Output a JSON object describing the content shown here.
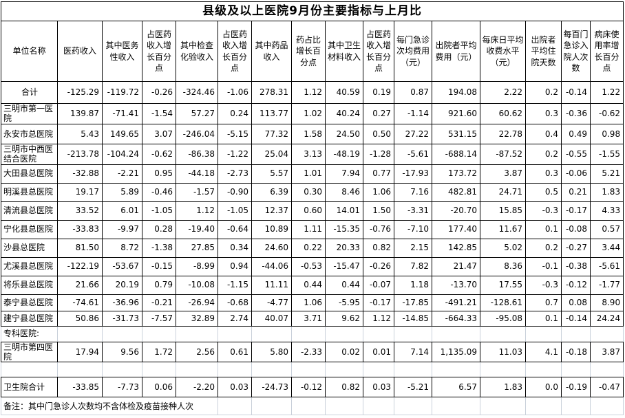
{
  "title": "县级及以上医院9月份主要指标与上月比",
  "note": "备注：其中门急诊人次数均不含体检及疫苗接种人次",
  "colors": {
    "text": "#000000",
    "background": "#ffffff",
    "table_border": "#000000",
    "gridline": "#c9d0da"
  },
  "columns": [
    "单位名称",
    "医药收入",
    "其中医务性收入",
    "占医药收入增长百分点",
    "其中检查化验收入",
    "占医药收入增长百分点",
    "其中药品收入",
    "药占比增长百分点",
    "其中卫生材料收入",
    "占医药收入增长百分点",
    "每门急诊次均费用（元）",
    "出院者平均费用（元）",
    "每床日平均收费水平（元）",
    "出院者平均住院天数",
    "每百门急诊入院人次数",
    "病床使用率增长百分点"
  ],
  "rows": [
    {
      "type": "total",
      "name": "合计",
      "values": [
        "-125.29",
        "-119.72",
        "-0.26",
        "-324.46",
        "-1.06",
        "278.31",
        "1.12",
        "40.59",
        "0.19",
        "0.87",
        "194.08",
        "2.22",
        "0.2",
        "-0.14",
        "1.22"
      ]
    },
    {
      "type": "hospital",
      "name": "三明市第一医院",
      "values": [
        "139.87",
        "-71.41",
        "-1.54",
        "57.27",
        "0.24",
        "113.77",
        "1.02",
        "40.24",
        "0.27",
        "-1.14",
        "921.60",
        "60.62",
        "0.3",
        "-0.36",
        "-0.62"
      ]
    },
    {
      "type": "hospital",
      "name": "永安市总医院",
      "values": [
        "5.43",
        "149.65",
        "3.07",
        "-246.04",
        "-5.15",
        "77.32",
        "1.58",
        "24.50",
        "0.50",
        "27.22",
        "531.15",
        "22.78",
        "0.4",
        "0.49",
        "0.98"
      ]
    },
    {
      "type": "hospital",
      "name": "三明市中西医结合医院",
      "values": [
        "-213.78",
        "-104.24",
        "-0.62",
        "-86.38",
        "-1.22",
        "25.04",
        "3.13",
        "-48.19",
        "-1.28",
        "-5.61",
        "-688.14",
        "-87.52",
        "0.2",
        "-0.55",
        "-1.55"
      ]
    },
    {
      "type": "hospital",
      "name": "大田县总医院",
      "values": [
        "-32.88",
        "-2.21",
        "0.95",
        "-44.18",
        "-2.73",
        "5.57",
        "1.01",
        "7.94",
        "0.77",
        "-17.93",
        "173.72",
        "3.87",
        "0.3",
        "-0.06",
        "5.21"
      ]
    },
    {
      "type": "hospital",
      "name": "明溪县总医院",
      "values": [
        "19.17",
        "5.89",
        "-0.46",
        "-1.57",
        "-0.90",
        "6.39",
        "0.30",
        "8.46",
        "1.06",
        "7.16",
        "482.81",
        "24.71",
        "0.5",
        "0.21",
        "1.83"
      ]
    },
    {
      "type": "hospital",
      "name": "清流县总医院",
      "values": [
        "33.52",
        "6.01",
        "-1.05",
        "1.12",
        "-1.05",
        "12.37",
        "0.60",
        "14.01",
        "1.50",
        "-3.31",
        "-20.70",
        "15.85",
        "-0.3",
        "-0.17",
        "4.33"
      ]
    },
    {
      "type": "hospital",
      "name": "宁化县总医院",
      "values": [
        "-33.83",
        "-9.97",
        "0.28",
        "-19.40",
        "-0.64",
        "10.89",
        "1.11",
        "-15.35",
        "-0.76",
        "-7.10",
        "177.40",
        "11.67",
        "0.1",
        "-0.08",
        "0.57"
      ]
    },
    {
      "type": "hospital",
      "name": "沙县总医院",
      "values": [
        "81.50",
        "8.72",
        "-1.38",
        "27.85",
        "0.34",
        "24.60",
        "0.22",
        "20.33",
        "0.82",
        "2.15",
        "142.85",
        "5.02",
        "0.2",
        "-0.27",
        "3.44"
      ]
    },
    {
      "type": "hospital",
      "name": "尤溪县总医院",
      "values": [
        "-122.19",
        "-53.67",
        "-0.15",
        "-8.99",
        "0.94",
        "-44.06",
        "-0.53",
        "-15.47",
        "-0.26",
        "7.82",
        "21.47",
        "8.36",
        "-0.1",
        "-0.38",
        "-5.61"
      ]
    },
    {
      "type": "hospital",
      "name": "将乐县总医院",
      "values": [
        "21.66",
        "20.19",
        "0.79",
        "-10.08",
        "-1.15",
        "11.11",
        "0.44",
        "0.44",
        "-0.07",
        "1.18",
        "-13.70",
        "17.55",
        "-0.3",
        "-0.12",
        "-1.77"
      ]
    },
    {
      "type": "hospital",
      "name": "泰宁县总医院",
      "values": [
        "-74.61",
        "-36.96",
        "-0.21",
        "-26.94",
        "-0.68",
        "-4.77",
        "1.06",
        "-5.95",
        "-0.17",
        "-17.85",
        "-491.21",
        "-128.61",
        "0.7",
        "0.08",
        "8.90"
      ]
    },
    {
      "type": "hospital",
      "name": "建宁县总医院",
      "values": [
        "50.86",
        "-31.73",
        "-7.57",
        "32.89",
        "2.74",
        "40.07",
        "3.71",
        "9.62",
        "1.12",
        "-14.85",
        "-664.33",
        "-95.08",
        "0.1",
        "-0.14",
        "24.24"
      ]
    },
    {
      "type": "section",
      "name": "专科医院:",
      "values": [
        "",
        "",
        "",
        "",
        "",
        "",
        "",
        "",
        "",
        "",
        "",
        "",
        "",
        "",
        ""
      ]
    },
    {
      "type": "hospital",
      "name": "三明市第四医院",
      "values": [
        "17.94",
        "9.56",
        "1.72",
        "2.56",
        "0.61",
        "5.80",
        "-2.33",
        "0.02",
        "0.01",
        "7.14",
        "1,135.09",
        "11.03",
        "4.1",
        "-0.18",
        "3.87"
      ]
    },
    {
      "type": "blank",
      "name": "",
      "values": [
        "",
        "",
        "",
        "",
        "",
        "",
        "",
        "",
        "",
        "",
        "",
        "",
        "",
        "",
        ""
      ]
    },
    {
      "type": "subtotal",
      "name": "卫生院合计",
      "values": [
        "-33.85",
        "-7.73",
        "0.06",
        "-2.20",
        "0.03",
        "-24.73",
        "-0.12",
        "0.82",
        "0.03",
        "-5.21",
        "6.57",
        "1.83",
        "0.0",
        "-0.19",
        "-0.47"
      ]
    }
  ]
}
